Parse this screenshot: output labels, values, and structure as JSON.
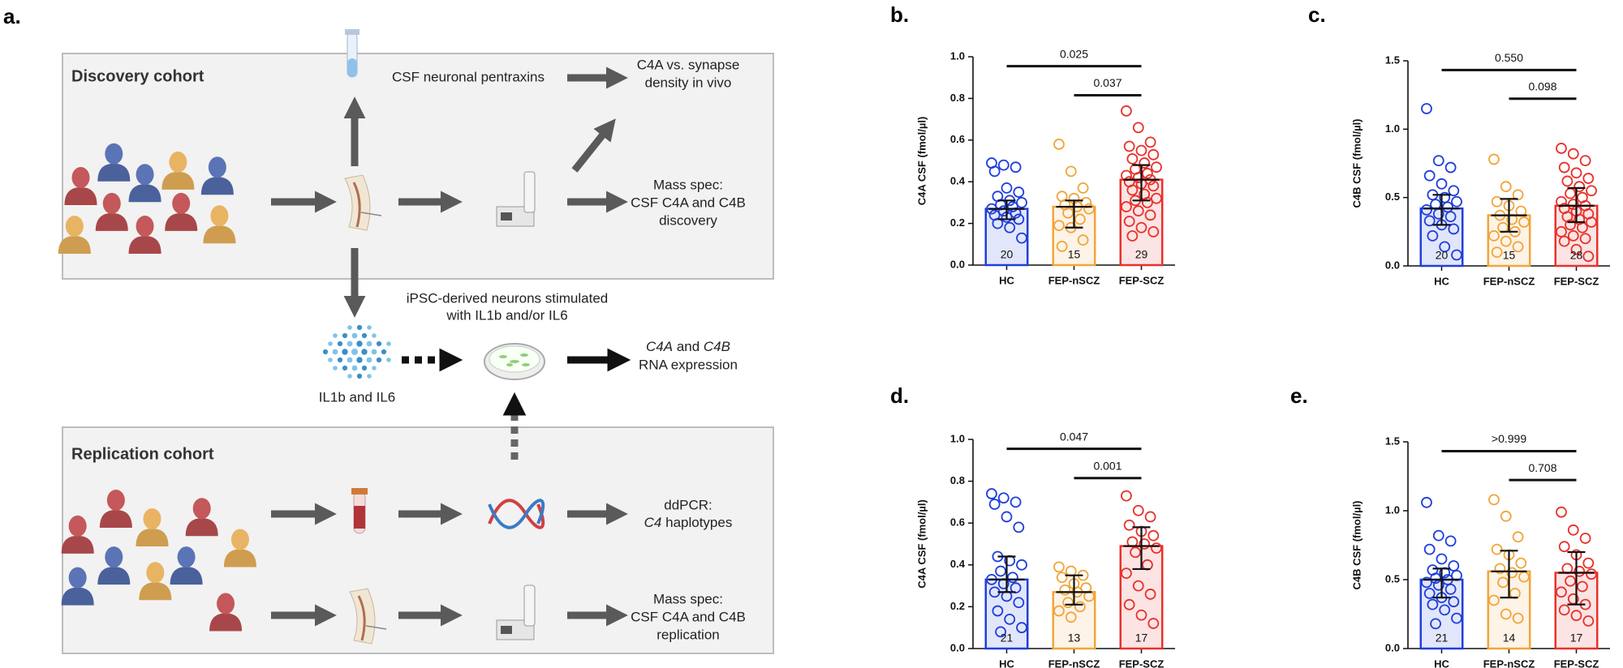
{
  "figure": {
    "label": "a.",
    "discovery_title": "Discovery cohort",
    "replication_title": "Replication cohort",
    "pentraxins": "CSF neuronal pentraxins",
    "synapse": [
      "C4A vs. synapse",
      "density in vivo"
    ],
    "mass_spec_discovery": [
      "Mass spec:",
      "CSF C4A and C4B",
      "discovery"
    ],
    "ipsc": [
      "iPSC-derived neurons stimulated",
      "with IL1b and/or IL6"
    ],
    "cytokines": "IL1b and IL6",
    "rna": {
      "gene1": "C4A",
      "joiner": " and ",
      "gene2": "C4B",
      "line2": "RNA expression"
    },
    "ddpcr": {
      "line1": "ddPCR:",
      "gene": "C4",
      "rest": " haplotypes"
    },
    "mass_spec_replication": [
      "Mass spec:",
      "CSF C4A and C4B",
      "replication"
    ]
  },
  "chart_data": [
    {
      "type": "bar",
      "label": "b.",
      "ylabel": "C4A CSF (fmol/µl)",
      "categories": [
        "HC",
        "FEP-nSCZ",
        "FEP-SCZ"
      ],
      "colors": [
        "#1f3fdb",
        "#f2a53a",
        "#e8322b"
      ],
      "values": [
        0.27,
        0.28,
        0.41
      ],
      "lower": [
        0.22,
        0.18,
        0.31
      ],
      "upper": [
        0.31,
        0.31,
        0.48
      ],
      "n": [
        20,
        15,
        29
      ],
      "points": [
        [
          0.49,
          0.48,
          0.47,
          0.45,
          0.37,
          0.35,
          0.33,
          0.31,
          0.3,
          0.29,
          0.28,
          0.27,
          0.26,
          0.25,
          0.24,
          0.23,
          0.22,
          0.2,
          0.18,
          0.13
        ],
        [
          0.58,
          0.45,
          0.37,
          0.33,
          0.32,
          0.3,
          0.29,
          0.28,
          0.27,
          0.25,
          0.22,
          0.19,
          0.18,
          0.12,
          0.09
        ],
        [
          0.74,
          0.66,
          0.59,
          0.57,
          0.55,
          0.53,
          0.51,
          0.49,
          0.47,
          0.46,
          0.44,
          0.43,
          0.42,
          0.41,
          0.4,
          0.39,
          0.38,
          0.36,
          0.34,
          0.32,
          0.31,
          0.3,
          0.28,
          0.26,
          0.24,
          0.21,
          0.18,
          0.16,
          0.14
        ]
      ],
      "comparisons": [
        {
          "p": "0.025",
          "pair": [
            "HC",
            "FEP-SCZ"
          ]
        },
        {
          "p": "0.037",
          "pair": [
            "FEP-nSCZ",
            "FEP-SCZ"
          ]
        }
      ],
      "ylim": [
        0,
        1
      ],
      "yticks": [
        {
          "value": 0,
          "label": "0.0"
        },
        0.2,
        0.4,
        0.6,
        0.8,
        {
          "value": 1,
          "label": "1.0"
        }
      ]
    },
    {
      "type": "bar",
      "label": "c.",
      "ylabel": "C4B CSF (fmol/µl)",
      "categories": [
        "HC",
        "FEP-nSCZ",
        "FEP-SCZ"
      ],
      "colors": [
        "#1f3fdb",
        "#f2a53a",
        "#e8322b"
      ],
      "values": [
        0.42,
        0.37,
        0.44
      ],
      "lower": [
        0.3,
        0.25,
        0.32
      ],
      "upper": [
        0.52,
        0.49,
        0.57
      ],
      "n": [
        20,
        15,
        28
      ],
      "points": [
        [
          1.15,
          0.77,
          0.72,
          0.66,
          0.6,
          0.55,
          0.52,
          0.5,
          0.47,
          0.45,
          0.43,
          0.41,
          0.38,
          0.36,
          0.33,
          0.3,
          0.27,
          0.22,
          0.14,
          0.08
        ],
        [
          0.78,
          0.58,
          0.52,
          0.47,
          0.44,
          0.4,
          0.37,
          0.34,
          0.32,
          0.28,
          0.25,
          0.22,
          0.18,
          0.14,
          0.1
        ],
        [
          0.86,
          0.82,
          0.77,
          0.72,
          0.68,
          0.64,
          0.62,
          0.58,
          0.55,
          0.53,
          0.5,
          0.47,
          0.45,
          0.44,
          0.42,
          0.4,
          0.38,
          0.36,
          0.34,
          0.32,
          0.3,
          0.28,
          0.25,
          0.22,
          0.2,
          0.18,
          0.12,
          0.07
        ]
      ],
      "comparisons": [
        {
          "p": "0.550",
          "pair": [
            "HC",
            "FEP-SCZ"
          ]
        },
        {
          "p": "0.098",
          "pair": [
            "FEP-nSCZ",
            "FEP-SCZ"
          ]
        }
      ],
      "ylim": [
        0,
        1.5
      ],
      "yticks": [
        {
          "value": 0,
          "label": "0.0"
        },
        0.5,
        {
          "value": 1,
          "label": "1.0"
        },
        1.5
      ]
    },
    {
      "type": "bar",
      "label": "d.",
      "ylabel": "C4A CSF (fmol/µl)",
      "categories": [
        "HC",
        "FEP-nSCZ",
        "FEP-SCZ"
      ],
      "colors": [
        "#1f3fdb",
        "#f2a53a",
        "#e8322b"
      ],
      "values": [
        0.33,
        0.27,
        0.49
      ],
      "lower": [
        0.27,
        0.21,
        0.38
      ],
      "upper": [
        0.44,
        0.35,
        0.58
      ],
      "n": [
        21,
        13,
        17
      ],
      "points": [
        [
          0.74,
          0.72,
          0.7,
          0.69,
          0.63,
          0.58,
          0.44,
          0.42,
          0.4,
          0.37,
          0.34,
          0.33,
          0.31,
          0.29,
          0.27,
          0.25,
          0.22,
          0.18,
          0.14,
          0.1,
          0.08
        ],
        [
          0.39,
          0.37,
          0.35,
          0.34,
          0.31,
          0.29,
          0.28,
          0.27,
          0.25,
          0.22,
          0.2,
          0.18,
          0.15
        ],
        [
          0.73,
          0.66,
          0.63,
          0.59,
          0.56,
          0.54,
          0.51,
          0.5,
          0.48,
          0.46,
          0.4,
          0.36,
          0.3,
          0.26,
          0.21,
          0.16,
          0.12
        ]
      ],
      "comparisons": [
        {
          "p": "0.047",
          "pair": [
            "HC",
            "FEP-SCZ"
          ]
        },
        {
          "p": "0.001",
          "pair": [
            "FEP-nSCZ",
            "FEP-SCZ"
          ]
        }
      ],
      "ylim": [
        0,
        1
      ],
      "yticks": [
        {
          "value": 0,
          "label": "0.0"
        },
        0.2,
        0.4,
        0.6,
        0.8,
        {
          "value": 1,
          "label": "1.0"
        }
      ]
    },
    {
      "type": "bar",
      "label": "e.",
      "ylabel": "C4B CSF (fmol/µl)",
      "categories": [
        "HC",
        "FEP-nSCZ",
        "FEP-SCZ"
      ],
      "colors": [
        "#1f3fdb",
        "#f2a53a",
        "#e8322b"
      ],
      "values": [
        0.5,
        0.56,
        0.55
      ],
      "lower": [
        0.37,
        0.37,
        0.32
      ],
      "upper": [
        0.58,
        0.71,
        0.7
      ],
      "n": [
        21,
        14,
        17
      ],
      "points": [
        [
          1.06,
          0.82,
          0.78,
          0.72,
          0.65,
          0.6,
          0.57,
          0.55,
          0.53,
          0.51,
          0.5,
          0.48,
          0.46,
          0.43,
          0.4,
          0.37,
          0.34,
          0.32,
          0.28,
          0.22,
          0.18
        ],
        [
          1.08,
          0.96,
          0.81,
          0.72,
          0.68,
          0.62,
          0.58,
          0.55,
          0.52,
          0.48,
          0.4,
          0.35,
          0.25,
          0.22
        ],
        [
          0.99,
          0.86,
          0.8,
          0.74,
          0.68,
          0.62,
          0.58,
          0.56,
          0.54,
          0.49,
          0.45,
          0.41,
          0.36,
          0.32,
          0.28,
          0.24,
          0.2
        ]
      ],
      "comparisons": [
        {
          "p": ">0.999",
          "pair": [
            "HC",
            "FEP-SCZ"
          ]
        },
        {
          "p": "0.708",
          "pair": [
            "FEP-nSCZ",
            "FEP-SCZ"
          ]
        }
      ],
      "ylim": [
        0,
        1.5
      ],
      "yticks": [
        {
          "value": 0,
          "label": "0.0"
        },
        0.5,
        {
          "value": 1,
          "label": "1.0"
        },
        1.5
      ]
    }
  ]
}
